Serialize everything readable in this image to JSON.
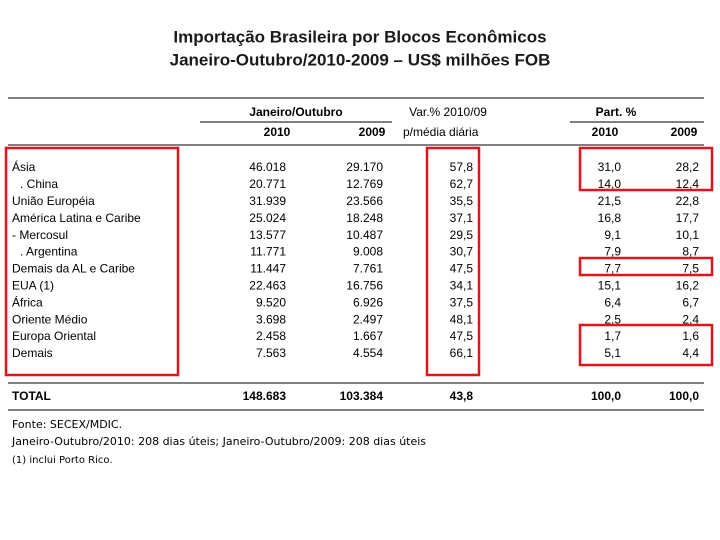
{
  "title": [
    "Importação Brasileira por Blocos Econômicos",
    "Janeiro-Outubro/2010-2009 – US$ milhões FOB"
  ],
  "table": {
    "group_headers": [
      "Janeiro/Outubro",
      "Var.% 2010/09",
      "Part. %"
    ],
    "columns": [
      "2010",
      "2009",
      "p/média diária",
      "2010",
      "2009"
    ],
    "rows": [
      [
        "Ásia",
        "46.018",
        "29.170",
        "57,8",
        "31,0",
        "28,2"
      ],
      [
        ". China",
        "20.771",
        "12.769",
        "62,7",
        "14,0",
        "12,4"
      ],
      [
        "União Européia",
        "31.939",
        "23.566",
        "35,5",
        "21,5",
        "22,8"
      ],
      [
        "América Latina e Caribe",
        "25.024",
        "18.248",
        "37,1",
        "16,8",
        "17,7"
      ],
      [
        "- Mercosul",
        "13.577",
        "10.487",
        "29,5",
        "9,1",
        "10,1"
      ],
      [
        ". Argentina",
        "11.771",
        "9.008",
        "30,7",
        "7,9",
        "8,7"
      ],
      [
        "Demais da AL e Caribe",
        "11.447",
        "7.761",
        "47,5",
        "7,7",
        "7,5"
      ],
      [
        "EUA (1)",
        "22.463",
        "16.756",
        "34,1",
        "15,1",
        "16,2"
      ],
      [
        "África",
        "9.520",
        "6.926",
        "37,5",
        "6,4",
        "6,7"
      ],
      [
        "Oriente Médio",
        "3.698",
        "2.497",
        "48,1",
        "2,5",
        "2,4"
      ],
      [
        "Europa Oriental",
        "2.458",
        "1.667",
        "47,5",
        "1,7",
        "1,6"
      ],
      [
        "Demais",
        "7.563",
        "4.554",
        "66,1",
        "5,1",
        "4,4"
      ]
    ],
    "total": [
      "TOTAL",
      "148.683",
      "103.384",
      "43,8",
      "100,0",
      "100,0"
    ]
  },
  "notes": [
    "Fonte: SECEX/MDIC.",
    "Janeiro-Outubro/2010: 208 dias úteis; Janeiro-Outubro/2009: 208 dias úteis",
    "(1) inclui Porto Rico."
  ]
}
